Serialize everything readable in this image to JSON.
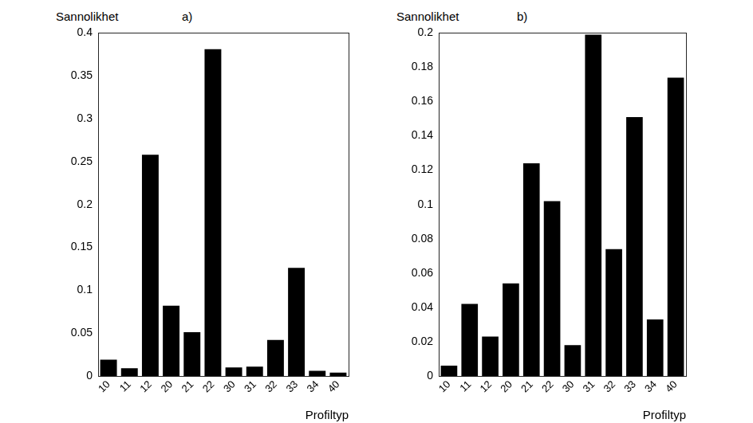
{
  "chart_data": [
    {
      "type": "bar",
      "title": "a)",
      "y_label": "Sannolikhet",
      "x_label": "Profiltyp",
      "categories": [
        "10",
        "11",
        "12",
        "20",
        "21",
        "22",
        "30",
        "31",
        "32",
        "33",
        "34",
        "40"
      ],
      "values": [
        0.019,
        0.009,
        0.258,
        0.082,
        0.051,
        0.381,
        0.01,
        0.011,
        0.042,
        0.126,
        0.006,
        0.004
      ],
      "color": "#000000",
      "ylim": [
        0,
        0.4
      ],
      "yticks": [
        0,
        0.05,
        0.1,
        0.15,
        0.2,
        0.25,
        0.3,
        0.35,
        0.4
      ],
      "grid": false
    },
    {
      "type": "bar",
      "title": "b)",
      "y_label": "Sannolikhet",
      "x_label": "Profiltyp",
      "categories": [
        "10",
        "11",
        "12",
        "20",
        "21",
        "22",
        "30",
        "31",
        "32",
        "33",
        "34",
        "40"
      ],
      "values": [
        0.006,
        0.042,
        0.023,
        0.054,
        0.124,
        0.102,
        0.018,
        0.199,
        0.074,
        0.151,
        0.033,
        0.174
      ],
      "color": "#000000",
      "ylim": [
        0,
        0.2
      ],
      "yticks": [
        0,
        0.02,
        0.04,
        0.06,
        0.08,
        0.1,
        0.12,
        0.14,
        0.16,
        0.18,
        0.2
      ],
      "grid": false
    }
  ]
}
